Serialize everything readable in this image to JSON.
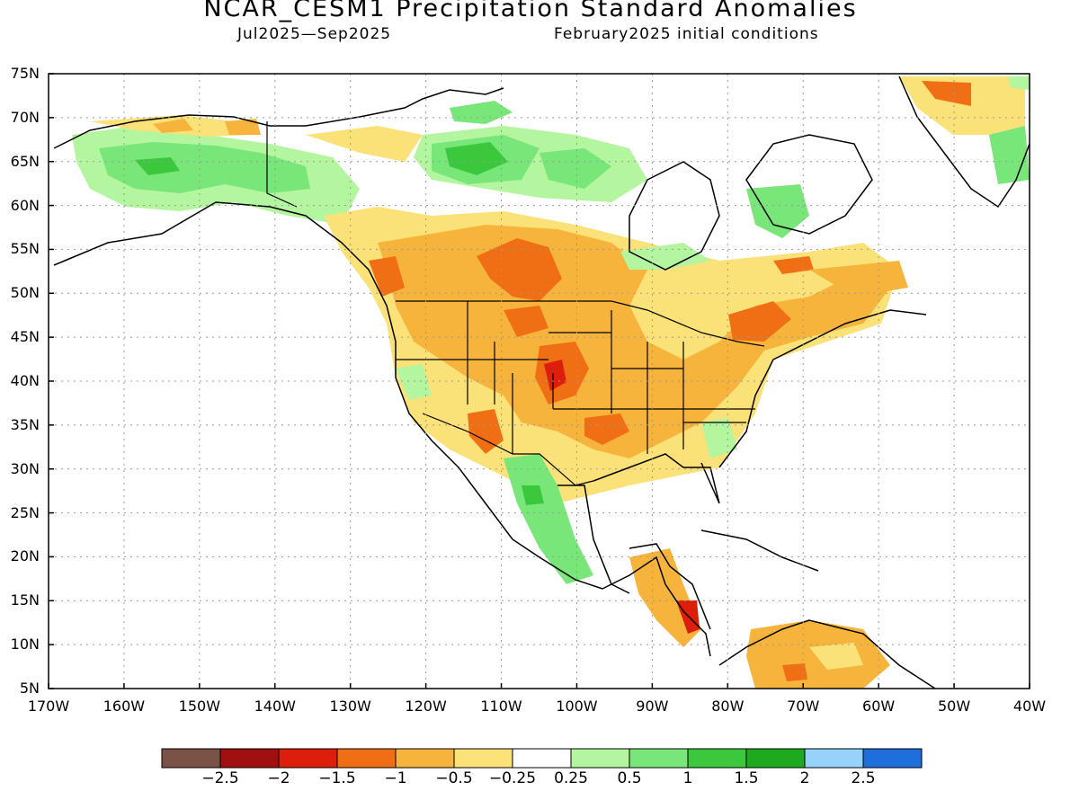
{
  "title": "NCAR_CESM1 Precipitation Standard Anomalies",
  "subtitle_left": "Jul2025—Sep2025",
  "subtitle_right": "February2025 initial conditions",
  "lat_labels": [
    "75N",
    "70N",
    "65N",
    "60N",
    "55N",
    "50N",
    "45N",
    "40N",
    "35N",
    "30N",
    "25N",
    "20N",
    "15N",
    "10N",
    "5N"
  ],
  "lon_labels": [
    "170W",
    "160W",
    "150W",
    "140W",
    "130W",
    "120W",
    "110W",
    "100W",
    "90W",
    "80W",
    "70W",
    "60W",
    "50W",
    "40W"
  ],
  "colorbar": {
    "colors": [
      "#7a5246",
      "#a01010",
      "#dc1e0a",
      "#f06e14",
      "#f7b43c",
      "#fae178",
      "#ffffff",
      "#b4f5a0",
      "#78e678",
      "#3cc83c",
      "#1eaa1e",
      "#96d2fa",
      "#1e6edc"
    ],
    "labels": [
      "−2.5",
      "−2",
      "−1.5",
      "−1",
      "−0.5",
      "−0.25",
      "0.25",
      "0.5",
      "1",
      "1.5",
      "2",
      "2.5"
    ]
  },
  "anomaly_colors": {
    "wet_light": "#b4f5a0",
    "wet_mid": "#78e678",
    "wet_strong": "#3cc83c",
    "dry_light": "#fae178",
    "dry_mid": "#f7b43c",
    "dry_strong": "#f06e14",
    "dry_extreme": "#dc1e0a"
  }
}
